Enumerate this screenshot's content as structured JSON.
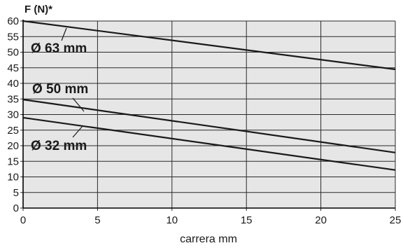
{
  "chart_data": {
    "type": "line",
    "title": "",
    "xlabel": "carrera mm",
    "ylabel": "F (N)*",
    "xlim": [
      0,
      25
    ],
    "ylim": [
      0,
      60
    ],
    "x_ticks": [
      0,
      5,
      10,
      15,
      20,
      25
    ],
    "y_ticks": [
      0,
      5,
      10,
      15,
      20,
      25,
      30,
      35,
      40,
      45,
      50,
      55,
      60
    ],
    "grid": true,
    "legend": "none",
    "colors": {
      "plot_background": "#e6e6e6",
      "grid": "#2a2a2a",
      "line": "#1a1a1a"
    },
    "series": [
      {
        "name": "Ø 63 mm",
        "x": [
          0,
          25
        ],
        "y": [
          60,
          44.5
        ]
      },
      {
        "name": "Ø 50 mm",
        "x": [
          0,
          25
        ],
        "y": [
          34.8,
          17.8
        ]
      },
      {
        "name": "Ø 32 mm",
        "x": [
          0,
          25
        ],
        "y": [
          29,
          12.2
        ]
      }
    ]
  }
}
